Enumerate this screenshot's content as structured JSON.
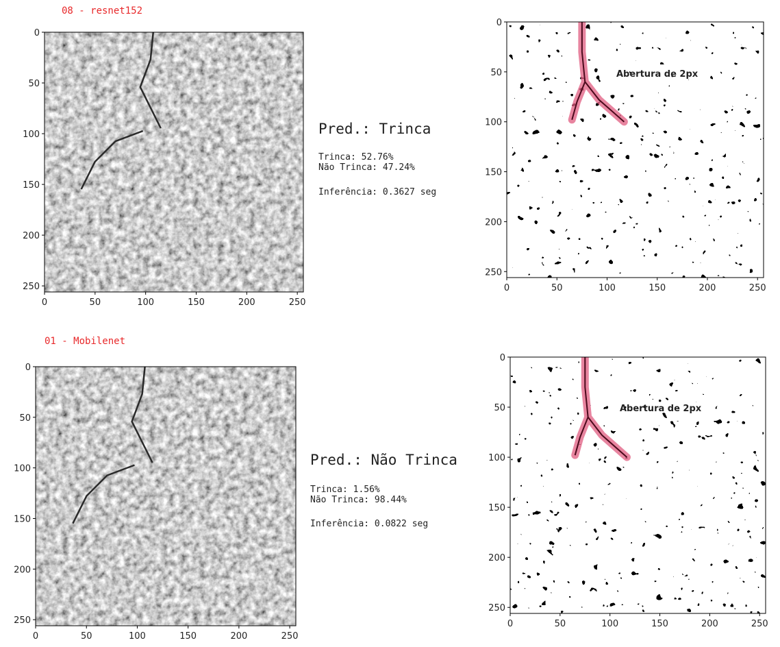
{
  "panels": [
    {
      "title": "08 - resnet152",
      "prediction": "Pred.: Trinca",
      "scores": [
        "Trinca: 52.76%",
        "Não Trinca: 47.24%"
      ],
      "inference": "Inferência: 0.3627 seg",
      "image_axes": {
        "xlim": [
          0,
          256
        ],
        "ylim": [
          0,
          256
        ],
        "xticks": [
          0,
          50,
          100,
          150,
          200,
          250
        ],
        "yticks": [
          0,
          50,
          100,
          150,
          200,
          250
        ]
      },
      "mask_axes": {
        "xlim": [
          0,
          256
        ],
        "ylim": [
          0,
          256
        ],
        "xticks": [
          0,
          50,
          100,
          150,
          200,
          250
        ],
        "yticks": [
          0,
          50,
          100,
          150,
          200,
          250
        ],
        "annotation": "Abertura de 2px"
      }
    },
    {
      "title": "01 - Mobilenet",
      "prediction": "Pred.: Não Trinca",
      "scores": [
        "Trinca: 1.56%",
        "Não Trinca: 98.44%"
      ],
      "inference": "Inferência: 0.0822 seg",
      "image_axes": {
        "xlim": [
          0,
          256
        ],
        "ylim": [
          0,
          256
        ],
        "xticks": [
          0,
          50,
          100,
          150,
          200,
          250
        ],
        "yticks": [
          0,
          50,
          100,
          150,
          200,
          250
        ]
      },
      "mask_axes": {
        "xlim": [
          0,
          256
        ],
        "ylim": [
          0,
          256
        ],
        "xticks": [
          0,
          50,
          100,
          150,
          200,
          250
        ],
        "yticks": [
          0,
          50,
          100,
          150,
          200,
          250
        ],
        "annotation": "Abertura de 2px"
      }
    }
  ]
}
